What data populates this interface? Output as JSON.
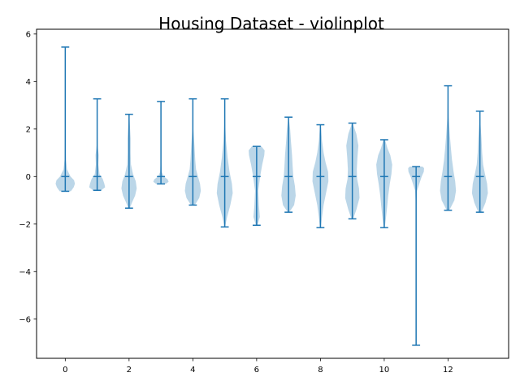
{
  "chart_data": {
    "type": "violin",
    "title": "Housing Dataset - violinplot",
    "xlabel": "",
    "ylabel": "",
    "xlim": [
      -0.9,
      13.9
    ],
    "ylim": [
      -7.65,
      6.2
    ],
    "xticks": [
      0,
      2,
      4,
      6,
      8,
      10,
      12
    ],
    "yticks": [
      -6,
      -4,
      -2,
      0,
      2,
      4,
      6
    ],
    "ytick_labels": [
      "−6",
      "−4",
      "−2",
      "0",
      "2",
      "4",
      "6"
    ],
    "grid": false,
    "legend": "none",
    "colors": {
      "stroke": "#1f77b4",
      "fill": "#1f77b4"
    },
    "violins": [
      {
        "position": 0,
        "min": -0.62,
        "max": 5.45,
        "median": 0.0,
        "width_max": 0.55,
        "profile": [
          [
            -0.62,
            0.32
          ],
          [
            -0.45,
            0.48
          ],
          [
            -0.3,
            0.55
          ],
          [
            -0.15,
            0.5
          ],
          [
            0.0,
            0.3
          ],
          [
            0.3,
            0.1
          ],
          [
            0.7,
            0.04
          ],
          [
            1.5,
            0.02
          ],
          [
            3.0,
            0.01
          ],
          [
            5.45,
            0.005
          ]
        ]
      },
      {
        "position": 1,
        "min": -0.58,
        "max": 3.27,
        "median": 0.0,
        "width_max": 0.5,
        "profile": [
          [
            -0.58,
            0.25
          ],
          [
            -0.45,
            0.5
          ],
          [
            -0.3,
            0.45
          ],
          [
            -0.1,
            0.35
          ],
          [
            0.1,
            0.15
          ],
          [
            0.5,
            0.08
          ],
          [
            0.9,
            0.1
          ],
          [
            1.3,
            0.03
          ],
          [
            2.2,
            0.01
          ],
          [
            3.27,
            0.005
          ]
        ]
      },
      {
        "position": 2,
        "min": -1.33,
        "max": 2.62,
        "median": 0.0,
        "width_max": 0.5,
        "profile": [
          [
            -1.33,
            0.05
          ],
          [
            -1.1,
            0.18
          ],
          [
            -0.8,
            0.38
          ],
          [
            -0.5,
            0.48
          ],
          [
            -0.2,
            0.42
          ],
          [
            0.1,
            0.25
          ],
          [
            0.5,
            0.12
          ],
          [
            1.0,
            0.1
          ],
          [
            1.6,
            0.1
          ],
          [
            2.2,
            0.05
          ],
          [
            2.62,
            0.01
          ]
        ]
      },
      {
        "position": 3,
        "min": -0.31,
        "max": 3.16,
        "median": 0.0,
        "width_max": 0.5,
        "profile": [
          [
            -0.31,
            0.3
          ],
          [
            -0.22,
            0.48
          ],
          [
            -0.12,
            0.42
          ],
          [
            0.0,
            0.18
          ],
          [
            0.2,
            0.05
          ],
          [
            0.6,
            0.02
          ],
          [
            1.5,
            0.01
          ],
          [
            3.16,
            0.005
          ]
        ]
      },
      {
        "position": 4,
        "min": -1.2,
        "max": 3.27,
        "median": 0.0,
        "width_max": 0.5,
        "profile": [
          [
            -1.2,
            0.12
          ],
          [
            -0.9,
            0.4
          ],
          [
            -0.6,
            0.5
          ],
          [
            -0.3,
            0.45
          ],
          [
            0.0,
            0.32
          ],
          [
            0.3,
            0.2
          ],
          [
            0.7,
            0.15
          ],
          [
            1.3,
            0.1
          ],
          [
            2.0,
            0.03
          ],
          [
            3.27,
            0.005
          ]
        ]
      },
      {
        "position": 5,
        "min": -2.12,
        "max": 3.27,
        "median": 0.0,
        "width_max": 0.5,
        "profile": [
          [
            -2.12,
            0.02
          ],
          [
            -1.7,
            0.15
          ],
          [
            -1.2,
            0.35
          ],
          [
            -0.7,
            0.5
          ],
          [
            -0.3,
            0.45
          ],
          [
            0.2,
            0.3
          ],
          [
            0.8,
            0.18
          ],
          [
            1.5,
            0.08
          ],
          [
            2.2,
            0.03
          ],
          [
            3.27,
            0.005
          ]
        ]
      },
      {
        "position": 6,
        "min": -2.05,
        "max": 1.27,
        "median": 0.0,
        "width_max": 0.5,
        "profile": [
          [
            -2.05,
            0.05
          ],
          [
            -1.7,
            0.2
          ],
          [
            -1.2,
            0.14
          ],
          [
            -0.6,
            0.1
          ],
          [
            0.0,
            0.22
          ],
          [
            0.5,
            0.35
          ],
          [
            0.9,
            0.48
          ],
          [
            1.1,
            0.5
          ],
          [
            1.27,
            0.3
          ]
        ]
      },
      {
        "position": 7,
        "min": -1.5,
        "max": 2.5,
        "median": 0.0,
        "width_max": 0.5,
        "profile": [
          [
            -1.5,
            0.05
          ],
          [
            -1.2,
            0.35
          ],
          [
            -0.8,
            0.45
          ],
          [
            -0.4,
            0.4
          ],
          [
            0.0,
            0.3
          ],
          [
            0.4,
            0.26
          ],
          [
            0.9,
            0.22
          ],
          [
            1.5,
            0.15
          ],
          [
            2.0,
            0.1
          ],
          [
            2.5,
            0.01
          ]
        ]
      },
      {
        "position": 8,
        "min": -2.15,
        "max": 2.18,
        "median": 0.0,
        "width_max": 0.5,
        "profile": [
          [
            -2.15,
            0.03
          ],
          [
            -1.7,
            0.1
          ],
          [
            -1.2,
            0.2
          ],
          [
            -0.7,
            0.35
          ],
          [
            -0.2,
            0.5
          ],
          [
            0.2,
            0.48
          ],
          [
            0.6,
            0.32
          ],
          [
            1.0,
            0.2
          ],
          [
            1.5,
            0.1
          ],
          [
            2.18,
            0.02
          ]
        ]
      },
      {
        "position": 9,
        "min": -1.78,
        "max": 2.25,
        "median": 0.0,
        "width_max": 0.5,
        "profile": [
          [
            -1.78,
            0.05
          ],
          [
            -1.4,
            0.25
          ],
          [
            -0.9,
            0.45
          ],
          [
            -0.5,
            0.42
          ],
          [
            -0.1,
            0.3
          ],
          [
            0.3,
            0.28
          ],
          [
            0.8,
            0.32
          ],
          [
            1.3,
            0.38
          ],
          [
            1.8,
            0.25
          ],
          [
            2.25,
            0.02
          ]
        ]
      },
      {
        "position": 10,
        "min": -2.15,
        "max": 1.55,
        "median": 0.0,
        "width_max": 0.5,
        "profile": [
          [
            -2.15,
            0.03
          ],
          [
            -1.8,
            0.1
          ],
          [
            -1.3,
            0.18
          ],
          [
            -0.8,
            0.25
          ],
          [
            -0.3,
            0.35
          ],
          [
            0.1,
            0.45
          ],
          [
            0.5,
            0.5
          ],
          [
            0.9,
            0.38
          ],
          [
            1.2,
            0.2
          ],
          [
            1.55,
            0.05
          ]
        ]
      },
      {
        "position": 11,
        "min": -7.1,
        "max": 0.42,
        "median": 0.0,
        "width_max": 0.5,
        "profile": [
          [
            -7.1,
            0.005
          ],
          [
            -3.0,
            0.01
          ],
          [
            -1.2,
            0.02
          ],
          [
            -0.6,
            0.06
          ],
          [
            -0.3,
            0.2
          ],
          [
            0.0,
            0.35
          ],
          [
            0.2,
            0.48
          ],
          [
            0.35,
            0.5
          ],
          [
            0.42,
            0.4
          ]
        ]
      },
      {
        "position": 12,
        "min": -1.42,
        "max": 3.82,
        "median": 0.0,
        "width_max": 0.5,
        "profile": [
          [
            -1.42,
            0.08
          ],
          [
            -1.0,
            0.4
          ],
          [
            -0.6,
            0.5
          ],
          [
            -0.2,
            0.45
          ],
          [
            0.2,
            0.35
          ],
          [
            0.7,
            0.25
          ],
          [
            1.2,
            0.18
          ],
          [
            1.7,
            0.12
          ],
          [
            2.5,
            0.04
          ],
          [
            3.82,
            0.005
          ]
        ]
      },
      {
        "position": 13,
        "min": -1.5,
        "max": 2.75,
        "median": 0.0,
        "width_max": 0.5,
        "profile": [
          [
            -1.5,
            0.1
          ],
          [
            -1.1,
            0.35
          ],
          [
            -0.7,
            0.5
          ],
          [
            -0.3,
            0.45
          ],
          [
            0.1,
            0.32
          ],
          [
            0.5,
            0.2
          ],
          [
            1.0,
            0.14
          ],
          [
            1.6,
            0.1
          ],
          [
            2.2,
            0.04
          ],
          [
            2.75,
            0.01
          ]
        ]
      }
    ]
  }
}
